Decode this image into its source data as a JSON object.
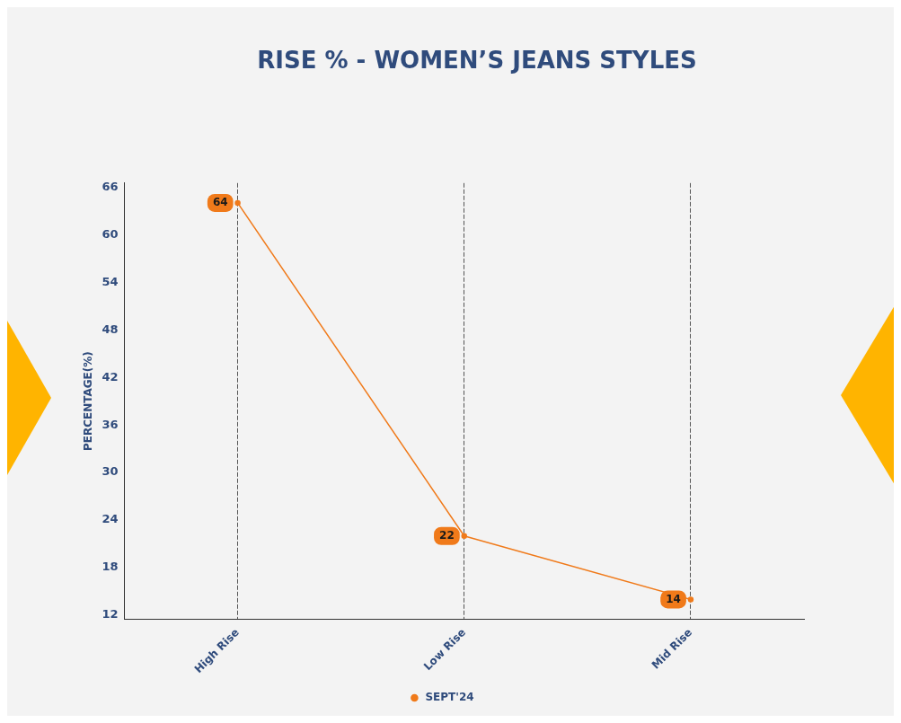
{
  "chart_data": {
    "type": "line",
    "title": "RISE % - WOMEN’S JEANS STYLES",
    "ylabel": "PERCENTAGE(%)",
    "categories": [
      "High Rise",
      "Low Rise",
      "Mid Rise"
    ],
    "series": [
      {
        "name": "SEPT'24",
        "color": "#f07a1a",
        "values": [
          64,
          22,
          14
        ]
      }
    ],
    "ylim": [
      11.5,
      66.5
    ],
    "yticks": [
      12,
      18,
      24,
      30,
      36,
      42,
      48,
      54,
      60,
      66
    ],
    "grid": "x",
    "legend": "bottom",
    "data_labels": true,
    "marker": "circle",
    "line_style": "solid"
  }
}
